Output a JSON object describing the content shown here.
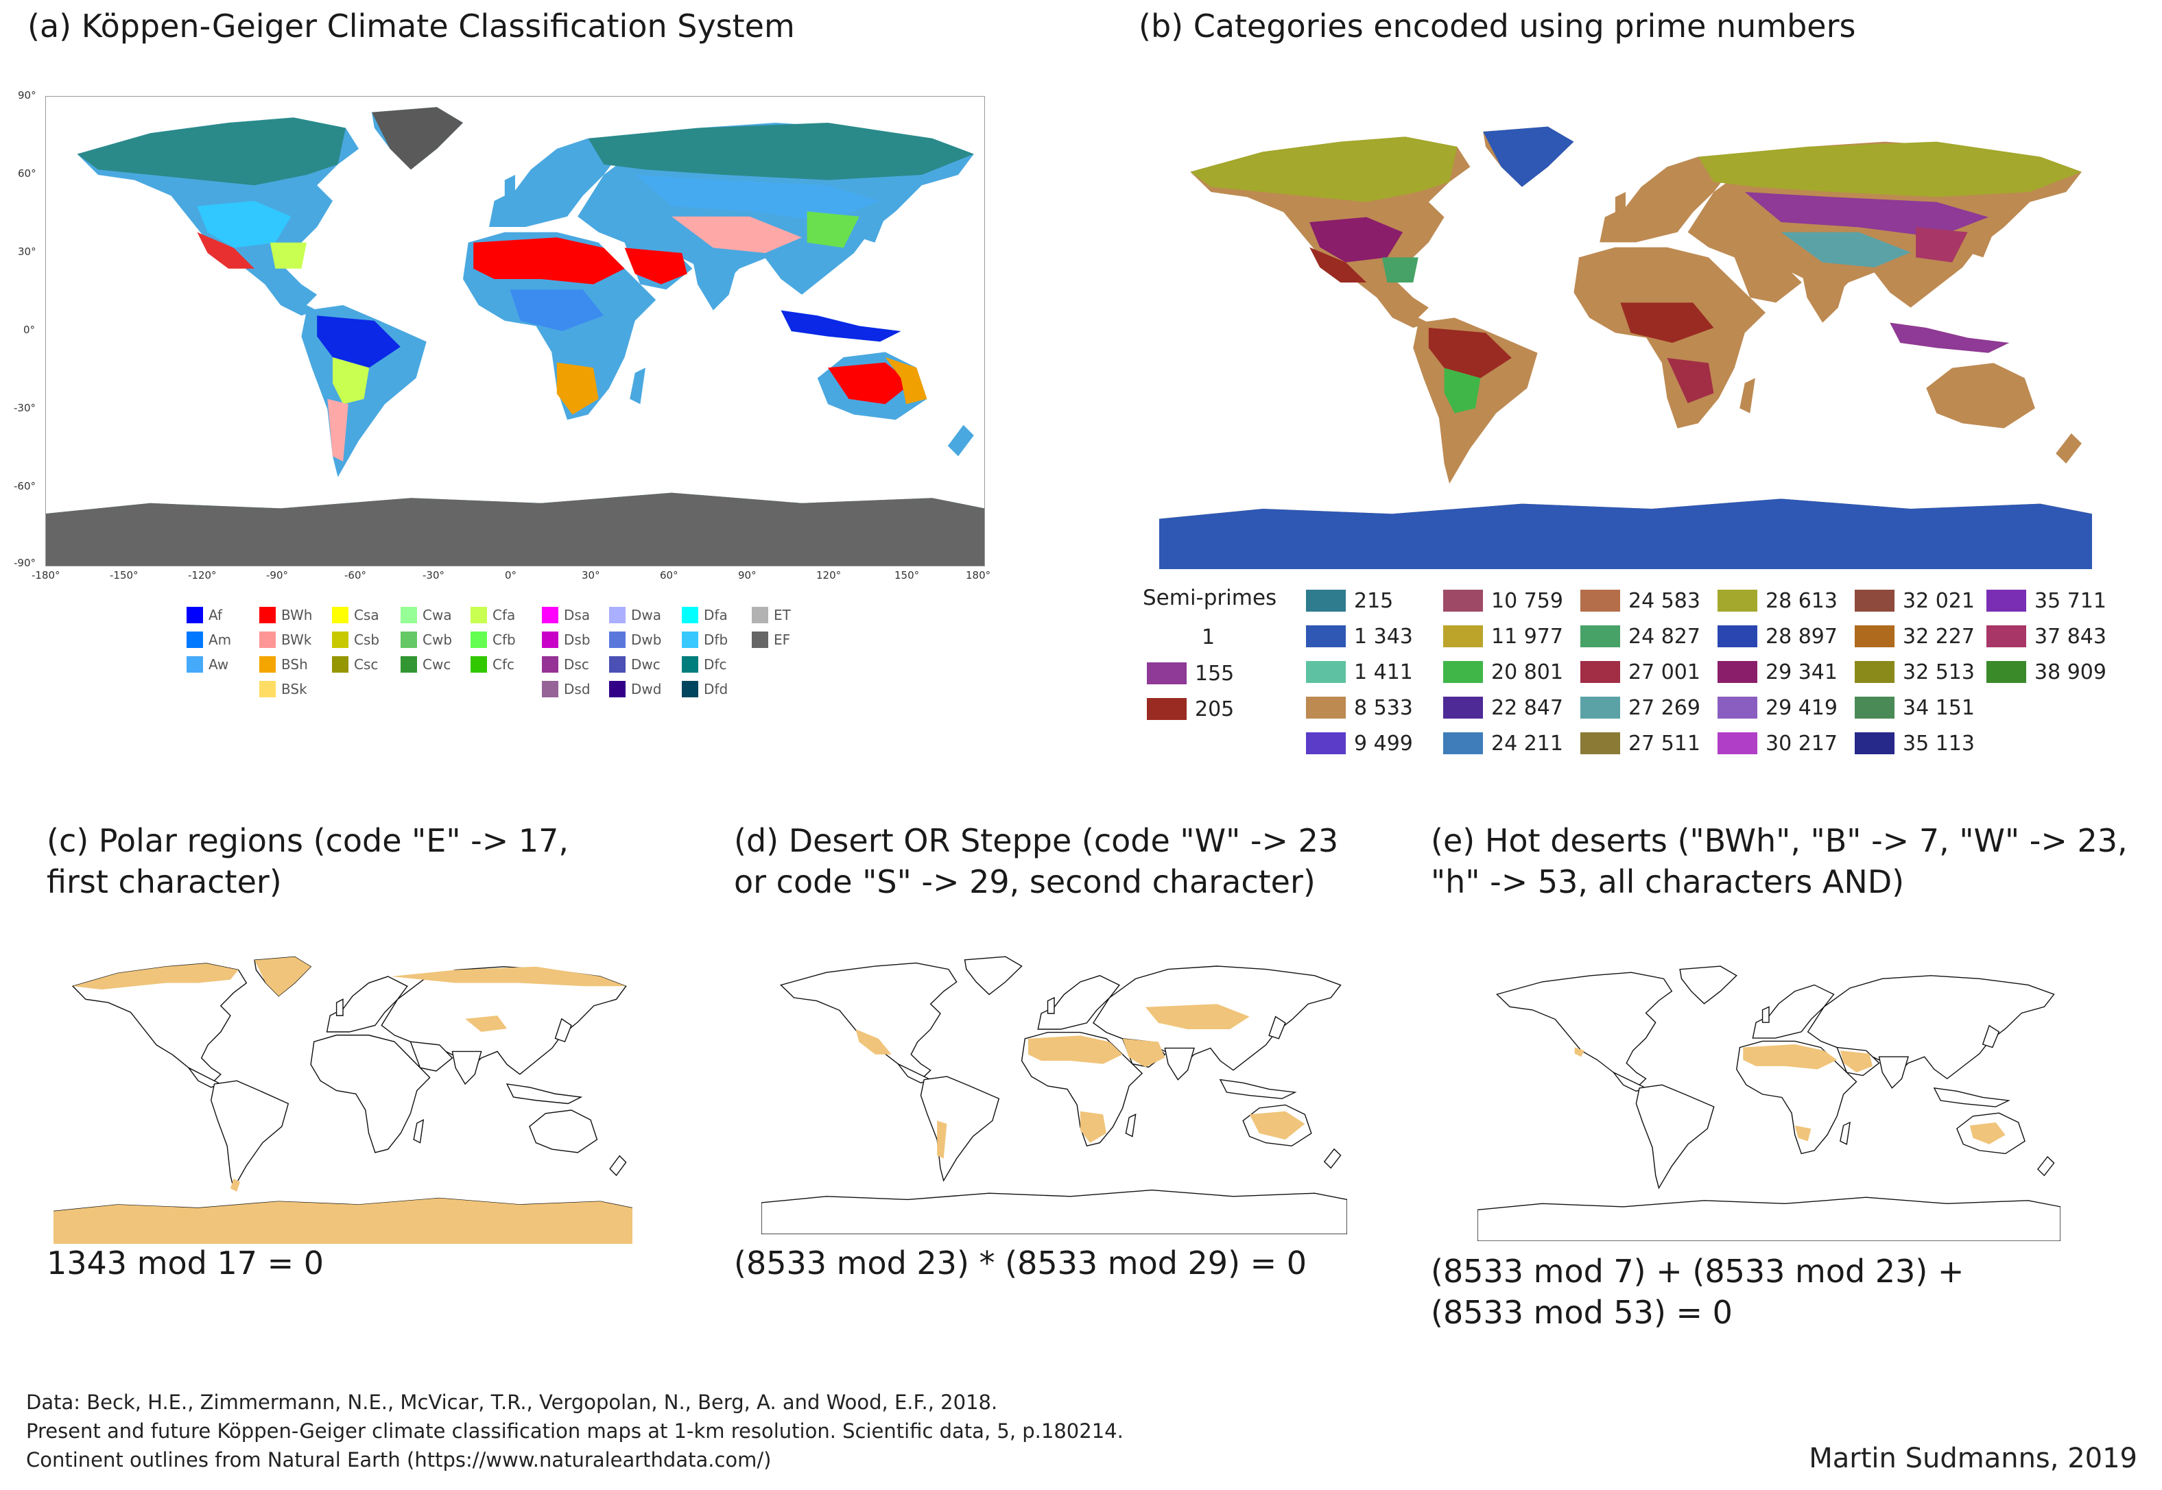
{
  "panels": {
    "a": {
      "title": "(a) Köppen-Geiger Climate Classification System"
    },
    "b": {
      "title": "(b) Categories encoded using prime numbers"
    },
    "c": {
      "title_line1": "(c) Polar regions (code \"E\" -> 17,",
      "title_line2": "first character)",
      "formula": "1343 mod 17 = 0"
    },
    "d": {
      "title_line1": "(d) Desert OR Steppe (code \"W\" -> 23",
      "title_line2": "or code \"S\" -> 29, second character)",
      "formula": "(8533 mod 23) * (8533 mod 29) = 0"
    },
    "e": {
      "title_line1": "(e) Hot deserts (\"BWh\", \"B\" -> 7, \"W\" -> 23,",
      "title_line2": "\"h\" -> 53, all characters AND)",
      "formula_line1": "(8533 mod 7) + (8533 mod 23) +",
      "formula_line2": "(8533 mod 53) = 0"
    }
  },
  "map_a_axes": {
    "lat_labels": [
      "90°",
      "60°",
      "30°",
      "0°",
      "-30°",
      "-60°",
      "-90°"
    ],
    "lon_labels": [
      "-180°",
      "-150°",
      "-120°",
      "-90°",
      "-60°",
      "-30°",
      "0°",
      "30°",
      "60°",
      "90°",
      "120°",
      "150°",
      "180°"
    ]
  },
  "koppen_legend": [
    {
      "code": "Af",
      "color": "#0000ff"
    },
    {
      "code": "Am",
      "color": "#0078ff"
    },
    {
      "code": "Aw",
      "color": "#46aafa"
    },
    {
      "code": "BWh",
      "color": "#ff0000"
    },
    {
      "code": "BWk",
      "color": "#ff9696"
    },
    {
      "code": "BSh",
      "color": "#f5a500"
    },
    {
      "code": "BSk",
      "color": "#ffdc64"
    },
    {
      "code": "Csa",
      "color": "#ffff00"
    },
    {
      "code": "Csb",
      "color": "#c8c800"
    },
    {
      "code": "Csc",
      "color": "#969600"
    },
    {
      "code": "Cwa",
      "color": "#96ff96"
    },
    {
      "code": "Cwb",
      "color": "#64c864"
    },
    {
      "code": "Cwc",
      "color": "#329632"
    },
    {
      "code": "Cfa",
      "color": "#c8ff50"
    },
    {
      "code": "Cfb",
      "color": "#64ff50"
    },
    {
      "code": "Cfc",
      "color": "#32c800"
    },
    {
      "code": "Dsa",
      "color": "#ff00ff"
    },
    {
      "code": "Dsb",
      "color": "#c800c8"
    },
    {
      "code": "Dsc",
      "color": "#963296"
    },
    {
      "code": "Dsd",
      "color": "#966496"
    },
    {
      "code": "Dwa",
      "color": "#aaafff"
    },
    {
      "code": "Dwb",
      "color": "#5a78dc"
    },
    {
      "code": "Dwc",
      "color": "#4b50b4"
    },
    {
      "code": "Dwd",
      "color": "#320087"
    },
    {
      "code": "Dfa",
      "color": "#00ffff"
    },
    {
      "code": "Dfb",
      "color": "#37c8ff"
    },
    {
      "code": "Dfc",
      "color": "#007d7d"
    },
    {
      "code": "Dfd",
      "color": "#00465f"
    },
    {
      "code": "ET",
      "color": "#b2b2b2"
    },
    {
      "code": "EF",
      "color": "#666666"
    }
  ],
  "semi_primes": {
    "heading": "Semi-primes",
    "items": [
      {
        "label": "1",
        "color": ""
      },
      {
        "label": "155",
        "color": "#8e3a96"
      },
      {
        "label": "205",
        "color": "#9a2b22"
      }
    ]
  },
  "prime_legend": [
    {
      "label": "215",
      "color": "#2e7c8e"
    },
    {
      "label": "1 343",
      "color": "#2e58b4"
    },
    {
      "label": "1 411",
      "color": "#5ec2a2"
    },
    {
      "label": "8 533",
      "color": "#bd8a52"
    },
    {
      "label": "9 499",
      "color": "#5a3cc8"
    },
    {
      "label": "10 759",
      "color": "#9e4a66"
    },
    {
      "label": "11 977",
      "color": "#bca42a"
    },
    {
      "label": "20 801",
      "color": "#40b648"
    },
    {
      "label": "22 847",
      "color": "#4e2a96"
    },
    {
      "label": "24 211",
      "color": "#3e7cba"
    },
    {
      "label": "24 583",
      "color": "#b56e4a"
    },
    {
      "label": "24 827",
      "color": "#46a266"
    },
    {
      "label": "27 001",
      "color": "#a22e46"
    },
    {
      "label": "27 269",
      "color": "#5aa2a6"
    },
    {
      "label": "27 511",
      "color": "#8a7a36"
    },
    {
      "label": "28 613",
      "color": "#a4a82c"
    },
    {
      "label": "28 897",
      "color": "#2a46b0"
    },
    {
      "label": "29 341",
      "color": "#8a1e6a"
    },
    {
      "label": "29 419",
      "color": "#8a5ec0"
    },
    {
      "label": "30 217",
      "color": "#b03ec6"
    },
    {
      "label": "32 021",
      "color": "#8e4a3c"
    },
    {
      "label": "32 227",
      "color": "#b06a1e"
    },
    {
      "label": "32 513",
      "color": "#8a8a1a"
    },
    {
      "label": "34 151",
      "color": "#4a8a56"
    },
    {
      "label": "35 113",
      "color": "#26288a"
    },
    {
      "label": "35 711",
      "color": "#7a2eb4"
    },
    {
      "label": "37 843",
      "color": "#a83666"
    },
    {
      "label": "38 909",
      "color": "#3a8a2a"
    }
  ],
  "footer": {
    "line1": "Data: Beck, H.E., Zimmermann, N.E., McVicar, T.R., Vergopolan, N., Berg, A. and Wood, E.F., 2018.",
    "line2": "Present and future Köppen-Geiger climate classification maps at 1-km resolution. Scientific data, 5, p.180214.",
    "line3": "Continent outlines from Natural Earth (https://www.naturalearthdata.com/)",
    "credit": "Martin Sudmanns, 2019"
  }
}
